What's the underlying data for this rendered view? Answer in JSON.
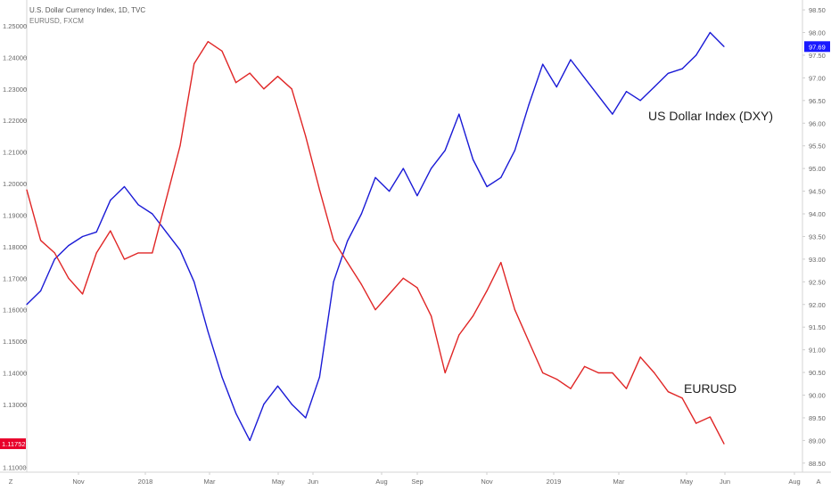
{
  "header": {
    "title": "U.S. Dollar Currency Index, 1D, TVC",
    "subtitle": "EURUSD, FXCM"
  },
  "axis_corner": {
    "left": "Z",
    "right": "A"
  },
  "chart_data": {
    "type": "line",
    "grid": false,
    "x_axis": {
      "ticks": [
        "Nov",
        "2018",
        "Mar",
        "May",
        "Jun",
        "Aug",
        "Sep",
        "Nov",
        "2019",
        "Mar",
        "May",
        "Jun",
        "Aug"
      ]
    },
    "left_axis": {
      "ticks": [
        "1.25000",
        "1.24000",
        "1.23000",
        "1.22000",
        "1.21000",
        "1.20000",
        "1.19000",
        "1.18000",
        "1.17000",
        "1.16000",
        "1.15000",
        "1.14000",
        "1.13000",
        "1.11752",
        "1.11000"
      ],
      "ylim": [
        1.1085,
        1.2565
      ],
      "last_value": "1.11752",
      "last_value_color": "#e8002a"
    },
    "right_axis": {
      "ticks": [
        "98.50",
        "98.00",
        "97.69",
        "97.50",
        "97.00",
        "96.50",
        "96.00",
        "95.50",
        "95.00",
        "94.50",
        "94.00",
        "93.50",
        "93.00",
        "92.50",
        "92.00",
        "91.50",
        "91.00",
        "90.50",
        "90.00",
        "89.50",
        "89.00",
        "88.50"
      ],
      "ylim": [
        88.3,
        98.6
      ],
      "last_value": "97.69",
      "last_value_color": "#1a1aff"
    },
    "series": [
      {
        "name": "US Dollar Index (DXY)",
        "color": "#1a1ad6",
        "axis": "right",
        "x": [
          0,
          2,
          4,
          6,
          8,
          10,
          12,
          14,
          16,
          18,
          20,
          22,
          24,
          26,
          28,
          30,
          32,
          34,
          36,
          38,
          40,
          42,
          44,
          46,
          48,
          50,
          52,
          54,
          56,
          58,
          60,
          62,
          64,
          66,
          68,
          70,
          72,
          74,
          76,
          78,
          80,
          82,
          84,
          86,
          88,
          90,
          92,
          94,
          96,
          98,
          100
        ],
        "values": [
          92.0,
          92.3,
          93.0,
          93.3,
          93.5,
          93.6,
          94.3,
          94.6,
          94.2,
          94.0,
          93.6,
          93.2,
          92.5,
          91.4,
          90.4,
          89.6,
          89.0,
          89.8,
          90.2,
          89.8,
          89.5,
          90.4,
          92.5,
          93.4,
          94.0,
          94.8,
          94.5,
          95.0,
          94.4,
          95.0,
          95.4,
          96.2,
          95.2,
          94.6,
          94.8,
          95.4,
          96.4,
          97.3,
          96.8,
          97.4,
          97.0,
          96.6,
          96.2,
          96.7,
          96.5,
          96.8,
          97.1,
          97.2,
          97.5,
          98.0,
          97.69
        ]
      },
      {
        "name": "EURUSD",
        "color": "#e02626",
        "axis": "left",
        "x": [
          0,
          2,
          4,
          6,
          8,
          10,
          12,
          14,
          16,
          18,
          20,
          22,
          24,
          26,
          28,
          30,
          32,
          34,
          36,
          38,
          40,
          42,
          44,
          46,
          48,
          50,
          52,
          54,
          56,
          58,
          60,
          62,
          64,
          66,
          68,
          70,
          72,
          74,
          76,
          78,
          80,
          82,
          84,
          86,
          88,
          90,
          92,
          94,
          96,
          98,
          100
        ],
        "values": [
          1.198,
          1.182,
          1.178,
          1.17,
          1.165,
          1.178,
          1.185,
          1.176,
          1.178,
          1.178,
          1.195,
          1.212,
          1.238,
          1.245,
          1.242,
          1.232,
          1.235,
          1.23,
          1.234,
          1.23,
          1.215,
          1.198,
          1.182,
          1.175,
          1.168,
          1.16,
          1.165,
          1.17,
          1.167,
          1.158,
          1.14,
          1.152,
          1.158,
          1.166,
          1.175,
          1.16,
          1.15,
          1.14,
          1.138,
          1.135,
          1.142,
          1.14,
          1.14,
          1.135,
          1.145,
          1.14,
          1.134,
          1.132,
          1.124,
          1.126,
          1.1175
        ]
      }
    ],
    "annotations": [
      {
        "text": "US Dollar Index (DXY)",
        "series": "US Dollar Index (DXY)"
      },
      {
        "text": "EURUSD",
        "series": "EURUSD"
      }
    ]
  }
}
